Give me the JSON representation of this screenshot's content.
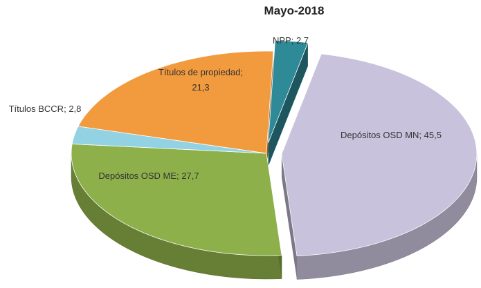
{
  "chart_data": {
    "type": "pie3d",
    "title": "Mayo-2018",
    "categories": [
      "NPP;",
      "Depósitos OSD MN;",
      "Depósitos OSD ME;",
      "Títulos BCCR;",
      "Títulos de propiedad;"
    ],
    "values": [
      2.7,
      45.5,
      27.7,
      2.8,
      21.3
    ],
    "value_labels": [
      "2,7",
      "45,5",
      "27,7",
      "2,8",
      "21,3"
    ],
    "colors": [
      "#2f8a98",
      "#c8c2dc",
      "#8db04a",
      "#92d2e2",
      "#f29a3e"
    ],
    "exploded": [
      true,
      true,
      false,
      false,
      false
    ]
  }
}
